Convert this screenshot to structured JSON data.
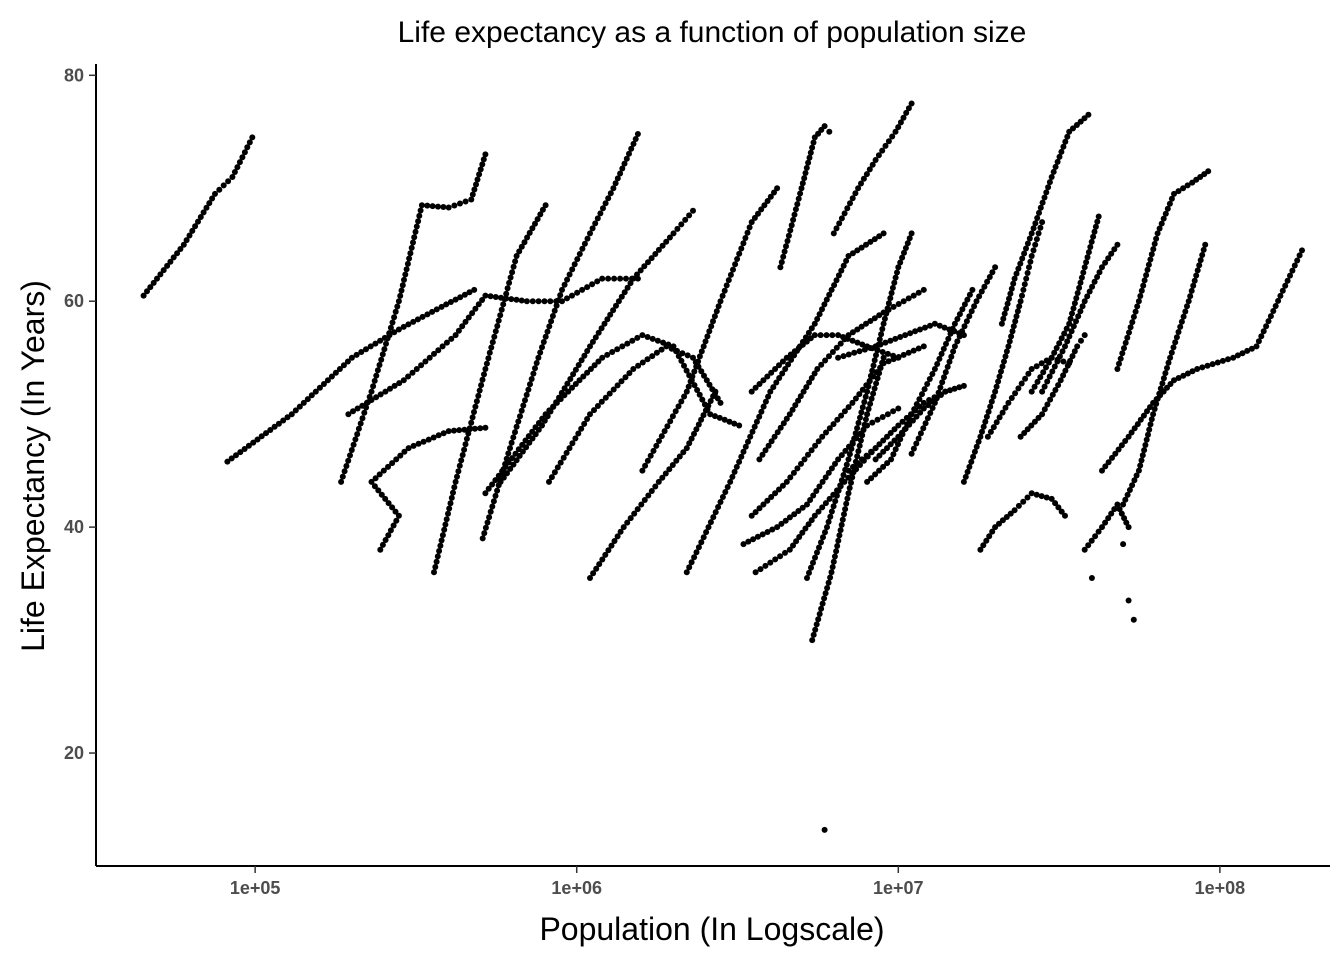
{
  "chart_data": {
    "type": "scatter",
    "title": "Life expectancy as a function of population size",
    "xlabel": "Population (In Logscale)",
    "ylabel": "Life Expectancy (In Years)",
    "x_scale": "log10",
    "xlim": [
      32000,
      220000000
    ],
    "ylim": [
      10,
      81
    ],
    "x_ticks": [
      {
        "value": 100000,
        "label": "1e+05"
      },
      {
        "value": 1000000,
        "label": "1e+06"
      },
      {
        "value": 10000000,
        "label": "1e+07"
      },
      {
        "value": 100000000,
        "label": "1e+08"
      }
    ],
    "y_ticks": [
      {
        "value": 20,
        "label": "20"
      },
      {
        "value": 40,
        "label": "40"
      },
      {
        "value": 60,
        "label": "60"
      },
      {
        "value": 80,
        "label": "80"
      }
    ],
    "grid": false,
    "legend": "none",
    "point_color": "#000000",
    "trajectories": [
      {
        "points": [
          [
            45000,
            60.5
          ],
          [
            60000,
            65
          ],
          [
            75000,
            69.5
          ],
          [
            85000,
            71
          ],
          [
            98000,
            74.5
          ]
        ]
      },
      {
        "points": [
          [
            82000,
            45.8
          ],
          [
            130000,
            50
          ],
          [
            200000,
            55
          ],
          [
            280000,
            57.5
          ],
          [
            380000,
            59.5
          ],
          [
            480000,
            61
          ]
        ]
      },
      {
        "points": [
          [
            185000,
            44
          ],
          [
            230000,
            52
          ],
          [
            280000,
            60
          ],
          [
            330000,
            68.5
          ],
          [
            400000,
            68.3
          ],
          [
            470000,
            69
          ],
          [
            520000,
            73
          ]
        ]
      },
      {
        "points": [
          [
            195000,
            50
          ],
          [
            290000,
            53
          ],
          [
            420000,
            57
          ],
          [
            520000,
            60.5
          ],
          [
            700000,
            60
          ],
          [
            900000,
            60
          ],
          [
            1200000,
            62
          ],
          [
            1550000,
            62
          ]
        ]
      },
      {
        "points": [
          [
            245000,
            38
          ],
          [
            280000,
            41
          ],
          [
            230000,
            44
          ],
          [
            300000,
            47
          ],
          [
            400000,
            48.5
          ],
          [
            520000,
            48.8
          ]
        ]
      },
      {
        "points": [
          [
            360000,
            36
          ],
          [
            420000,
            44
          ],
          [
            520000,
            54
          ],
          [
            650000,
            64
          ],
          [
            800000,
            68.5
          ]
        ]
      },
      {
        "points": [
          [
            510000,
            39
          ],
          [
            620000,
            47
          ],
          [
            760000,
            55
          ],
          [
            900000,
            61
          ],
          [
            1100000,
            66
          ],
          [
            1300000,
            70
          ],
          [
            1550000,
            74.8
          ]
        ]
      },
      {
        "points": [
          [
            520000,
            43
          ],
          [
            800000,
            50
          ],
          [
            1200000,
            55
          ],
          [
            1600000,
            57
          ],
          [
            2000000,
            56
          ],
          [
            2600000,
            50
          ],
          [
            3200000,
            49
          ]
        ]
      },
      {
        "points": [
          [
            580000,
            44
          ],
          [
            780000,
            49
          ],
          [
            1100000,
            56
          ],
          [
            1500000,
            62
          ],
          [
            2000000,
            66
          ],
          [
            2300000,
            68
          ]
        ]
      },
      {
        "points": [
          [
            820000,
            44
          ],
          [
            1100000,
            50
          ],
          [
            1500000,
            54
          ],
          [
            1900000,
            56
          ],
          [
            2300000,
            55
          ],
          [
            2800000,
            51
          ]
        ]
      },
      {
        "points": [
          [
            1100000,
            35.5
          ],
          [
            1400000,
            40
          ],
          [
            1800000,
            44
          ],
          [
            2200000,
            47
          ],
          [
            2700000,
            52
          ]
        ]
      },
      {
        "points": [
          [
            1600000,
            45
          ],
          [
            2200000,
            52
          ],
          [
            2800000,
            60
          ],
          [
            3500000,
            67
          ],
          [
            4200000,
            70
          ]
        ]
      },
      {
        "points": [
          [
            2200000,
            36
          ],
          [
            3000000,
            44
          ],
          [
            4000000,
            52
          ],
          [
            5500000,
            58
          ],
          [
            7000000,
            64
          ],
          [
            9000000,
            66
          ]
        ]
      },
      {
        "points": [
          [
            3300000,
            38.5
          ],
          [
            4200000,
            40
          ],
          [
            5200000,
            42
          ],
          [
            6500000,
            46
          ],
          [
            8000000,
            49
          ],
          [
            10000000,
            50.5
          ]
        ]
      },
      {
        "points": [
          [
            3500000,
            41
          ],
          [
            4500000,
            44
          ],
          [
            5800000,
            48
          ],
          [
            7200000,
            51
          ],
          [
            9000000,
            54.5
          ],
          [
            12000000,
            56
          ]
        ]
      },
      {
        "points": [
          [
            3600000,
            36
          ],
          [
            4600000,
            38
          ],
          [
            5500000,
            41
          ],
          [
            6800000,
            44
          ],
          [
            8500000,
            47
          ]
        ]
      },
      {
        "points": [
          [
            3700000,
            46
          ],
          [
            4600000,
            50
          ],
          [
            5600000,
            54
          ],
          [
            7000000,
            57
          ],
          [
            9000000,
            59
          ],
          [
            12000000,
            61
          ]
        ]
      },
      {
        "points": [
          [
            3500000,
            52
          ],
          [
            4500000,
            55
          ],
          [
            5500000,
            57
          ],
          [
            6500000,
            57
          ],
          [
            8000000,
            56
          ],
          [
            10000000,
            55
          ]
        ]
      },
      {
        "points": [
          [
            4300000,
            63
          ],
          [
            5000000,
            70
          ],
          [
            5500000,
            74.5
          ],
          [
            5900000,
            75.5
          ],
          [
            6100000,
            75
          ]
        ]
      },
      {
        "points": [
          [
            5200000,
            35.5
          ],
          [
            6000000,
            40
          ],
          [
            7000000,
            46
          ],
          [
            8000000,
            52
          ],
          [
            9000000,
            58
          ],
          [
            10000000,
            63
          ],
          [
            11000000,
            66
          ]
        ]
      },
      {
        "points": [
          [
            5400000,
            30
          ],
          [
            6200000,
            36
          ],
          [
            7000000,
            43
          ],
          [
            8000000,
            50
          ],
          [
            9000000,
            55
          ]
        ]
      },
      {
        "points": [
          [
            6300000,
            66
          ],
          [
            7500000,
            70
          ],
          [
            8500000,
            72.5
          ],
          [
            9800000,
            75
          ],
          [
            11000000,
            77.5
          ]
        ]
      },
      {
        "points": [
          [
            6500000,
            55
          ],
          [
            8500000,
            56
          ],
          [
            10500000,
            57
          ],
          [
            13000000,
            58
          ],
          [
            16000000,
            57
          ]
        ]
      },
      {
        "points": [
          [
            7000000,
            45
          ],
          [
            8500000,
            47
          ],
          [
            10000000,
            49
          ],
          [
            12000000,
            51
          ],
          [
            14000000,
            52
          ]
        ]
      },
      {
        "points": [
          [
            8000000,
            44
          ],
          [
            9500000,
            46
          ],
          [
            11000000,
            50
          ],
          [
            13000000,
            54
          ],
          [
            15000000,
            58
          ],
          [
            17000000,
            61
          ]
        ]
      },
      {
        "points": [
          [
            8500000,
            46
          ],
          [
            10000000,
            48
          ],
          [
            12000000,
            50.5
          ],
          [
            14000000,
            52
          ],
          [
            16000000,
            52.5
          ]
        ]
      },
      {
        "points": [
          [
            11000000,
            46.5
          ],
          [
            13000000,
            51
          ],
          [
            15000000,
            56
          ],
          [
            17500000,
            60
          ],
          [
            20000000,
            63
          ]
        ]
      },
      {
        "points": [
          [
            16000000,
            44
          ],
          [
            18000000,
            48
          ],
          [
            20000000,
            52
          ],
          [
            22000000,
            56
          ],
          [
            24000000,
            60
          ],
          [
            26000000,
            64
          ],
          [
            28000000,
            67
          ]
        ]
      },
      {
        "points": [
          [
            19000000,
            48
          ],
          [
            22000000,
            51
          ],
          [
            26000000,
            54
          ],
          [
            30000000,
            55
          ],
          [
            34000000,
            54.5
          ]
        ]
      },
      {
        "points": [
          [
            18000000,
            38
          ],
          [
            20000000,
            40
          ],
          [
            23000000,
            41.5
          ],
          [
            26000000,
            43
          ],
          [
            30000000,
            42.5
          ],
          [
            33000000,
            41
          ]
        ]
      },
      {
        "points": [
          [
            21000000,
            58
          ],
          [
            23000000,
            62
          ],
          [
            26000000,
            66
          ],
          [
            30000000,
            71
          ],
          [
            34000000,
            75
          ],
          [
            39000000,
            76.5
          ]
        ]
      },
      {
        "points": [
          [
            24000000,
            48
          ],
          [
            28000000,
            50
          ],
          [
            32000000,
            53
          ],
          [
            36000000,
            56
          ],
          [
            38000000,
            57
          ]
        ]
      },
      {
        "points": [
          [
            26000000,
            52
          ],
          [
            30000000,
            55
          ],
          [
            34000000,
            58
          ],
          [
            38000000,
            63
          ],
          [
            42000000,
            67.5
          ]
        ]
      },
      {
        "points": [
          [
            28000000,
            52
          ],
          [
            33000000,
            56
          ],
          [
            38000000,
            60
          ],
          [
            43000000,
            63
          ],
          [
            48000000,
            65
          ]
        ]
      },
      {
        "points": [
          [
            38000000,
            38
          ],
          [
            43000000,
            40
          ],
          [
            48000000,
            42
          ],
          [
            52000000,
            40
          ]
        ]
      },
      {
        "points": [
          [
            43000000,
            45
          ],
          [
            52000000,
            48
          ],
          [
            62000000,
            51
          ],
          [
            72000000,
            53
          ],
          [
            85000000,
            54
          ],
          [
            110000000,
            55
          ],
          [
            130000000,
            56
          ],
          [
            180000000,
            64.5
          ]
        ]
      },
      {
        "points": [
          [
            50000000,
            42
          ],
          [
            56000000,
            45
          ],
          [
            62000000,
            50
          ],
          [
            70000000,
            55
          ],
          [
            80000000,
            60
          ],
          [
            90000000,
            65
          ]
        ]
      },
      {
        "points": [
          [
            48000000,
            54
          ],
          [
            56000000,
            60
          ],
          [
            64000000,
            66
          ],
          [
            72000000,
            69.5
          ],
          [
            82000000,
            70.5
          ],
          [
            92000000,
            71.5
          ]
        ]
      }
    ],
    "isolated_points": [
      [
        5900000,
        13.2
      ],
      [
        54000000,
        31.8
      ],
      [
        52000000,
        33.5
      ],
      [
        40000000,
        35.5
      ],
      [
        50000000,
        38.5
      ]
    ]
  }
}
